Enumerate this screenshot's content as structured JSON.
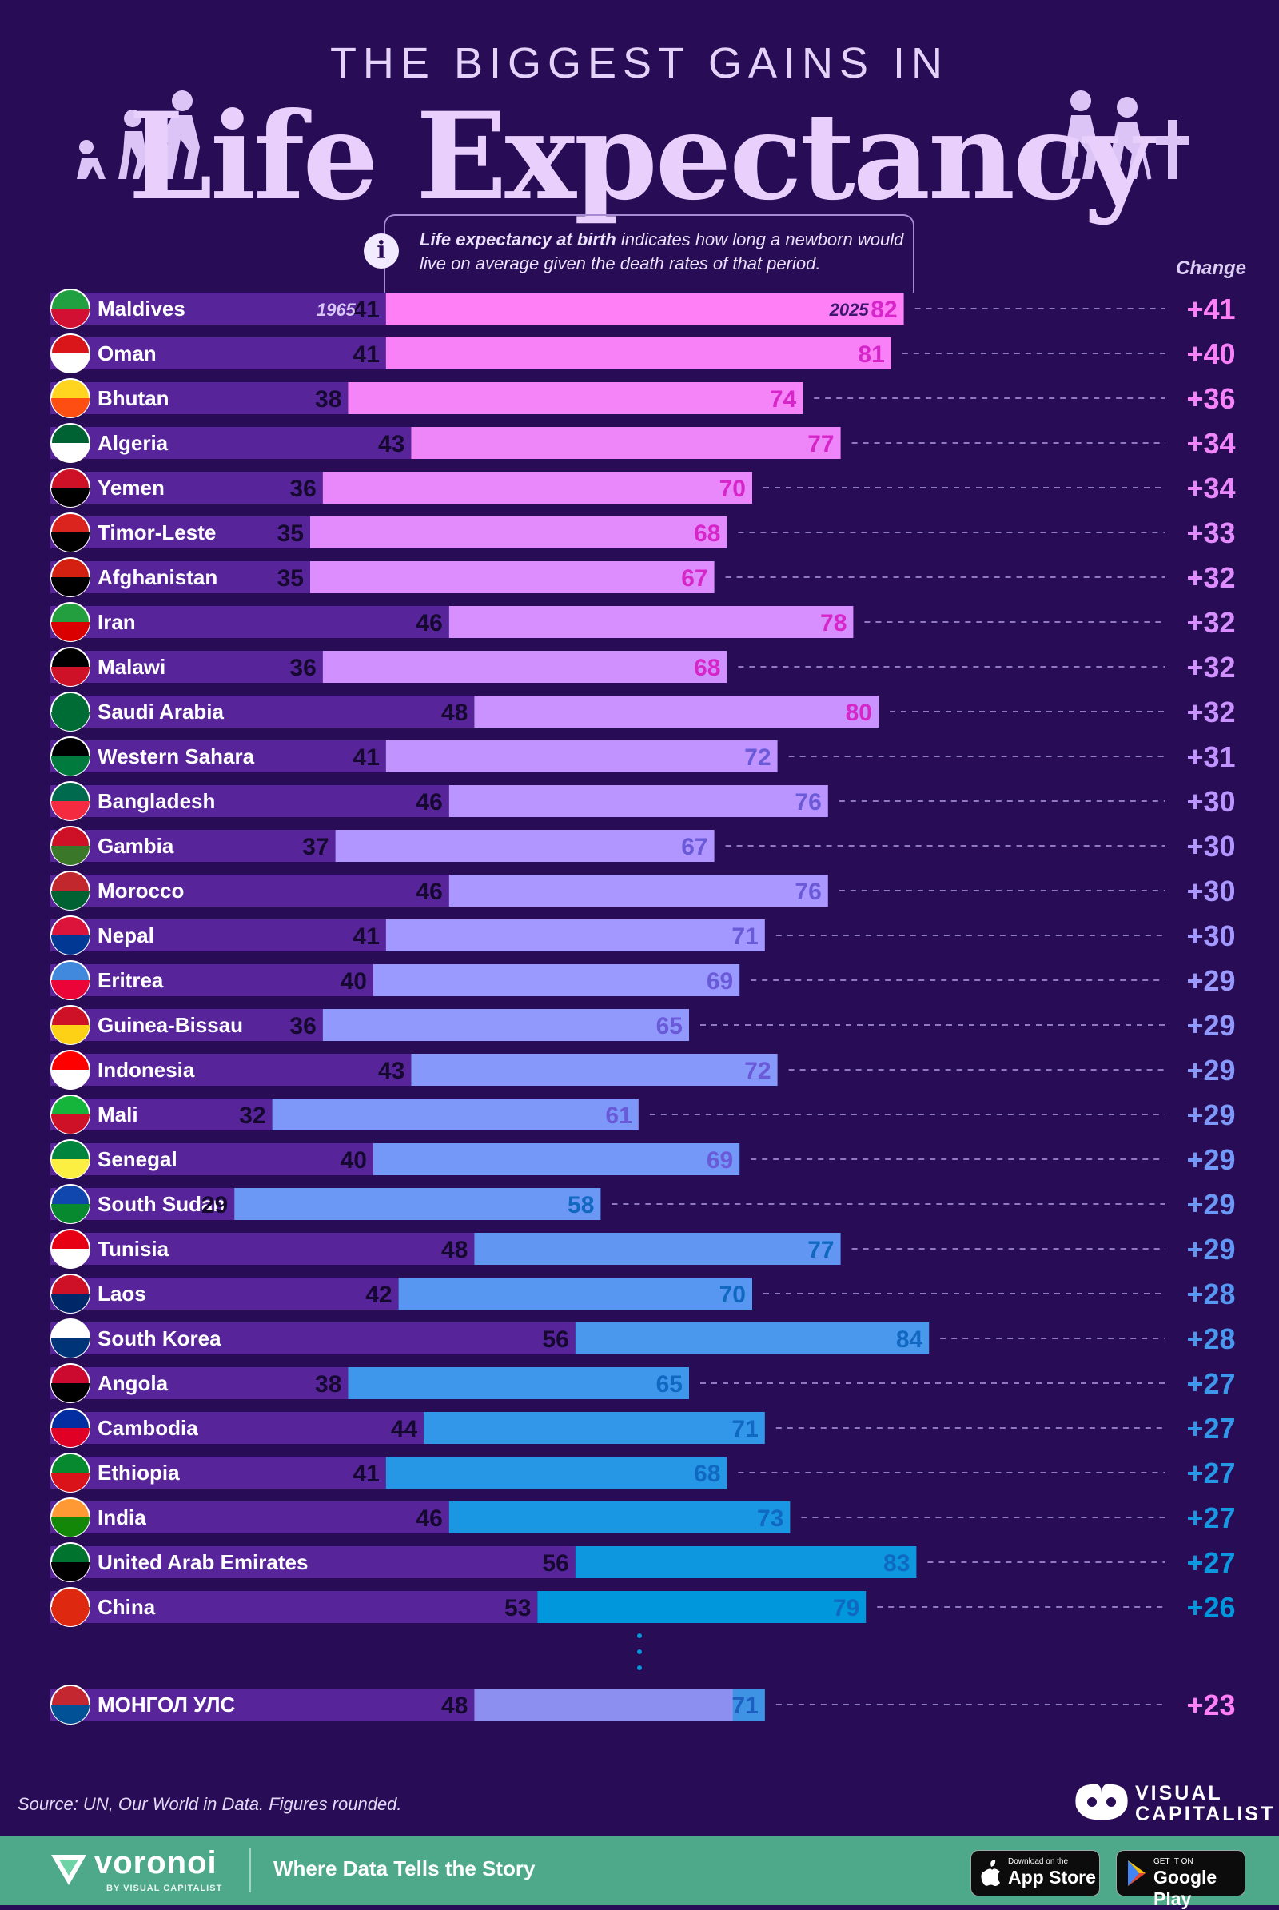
{
  "header": {
    "title_top": "THE BIGGEST GAINS IN",
    "title_main": "Life Expectancy",
    "info_bold": "Life expectancy at birth",
    "info_rest": "indicates how long a newborn would live on average given the death rates of that period.",
    "change_label": "Change"
  },
  "colors": {
    "background": "#280c55",
    "bar_1965": "#57249a",
    "bar_2025_top": "#ff7ff6",
    "bar_2025_bottom": "#0097dc",
    "footer": "#4ea98a"
  },
  "chart_data": {
    "type": "bar",
    "title": "The Biggest Gains in Life Expectancy",
    "series": [
      {
        "name": "1965"
      },
      {
        "name": "2025"
      }
    ],
    "xlim": [
      0,
      90
    ],
    "countries": [
      {
        "name": "Maldives",
        "v1965": 41,
        "v2025": 82,
        "change": "+41"
      },
      {
        "name": "Oman",
        "v1965": 41,
        "v2025": 81,
        "change": "+40"
      },
      {
        "name": "Bhutan",
        "v1965": 38,
        "v2025": 74,
        "change": "+36"
      },
      {
        "name": "Algeria",
        "v1965": 43,
        "v2025": 77,
        "change": "+34"
      },
      {
        "name": "Yemen",
        "v1965": 36,
        "v2025": 70,
        "change": "+34"
      },
      {
        "name": "Timor-Leste",
        "v1965": 35,
        "v2025": 68,
        "change": "+33"
      },
      {
        "name": "Afghanistan",
        "v1965": 35,
        "v2025": 67,
        "change": "+32"
      },
      {
        "name": "Iran",
        "v1965": 46,
        "v2025": 78,
        "change": "+32"
      },
      {
        "name": "Malawi",
        "v1965": 36,
        "v2025": 68,
        "change": "+32"
      },
      {
        "name": "Saudi Arabia",
        "v1965": 48,
        "v2025": 80,
        "change": "+32"
      },
      {
        "name": "Western Sahara",
        "v1965": 41,
        "v2025": 72,
        "change": "+31"
      },
      {
        "name": "Bangladesh",
        "v1965": 46,
        "v2025": 76,
        "change": "+30"
      },
      {
        "name": "Gambia",
        "v1965": 37,
        "v2025": 67,
        "change": "+30"
      },
      {
        "name": "Morocco",
        "v1965": 46,
        "v2025": 76,
        "change": "+30"
      },
      {
        "name": "Nepal",
        "v1965": 41,
        "v2025": 71,
        "change": "+30"
      },
      {
        "name": "Eritrea",
        "v1965": 40,
        "v2025": 69,
        "change": "+29"
      },
      {
        "name": "Guinea-Bissau",
        "v1965": 36,
        "v2025": 65,
        "change": "+29"
      },
      {
        "name": "Indonesia",
        "v1965": 43,
        "v2025": 72,
        "change": "+29"
      },
      {
        "name": "Mali",
        "v1965": 32,
        "v2025": 61,
        "change": "+29"
      },
      {
        "name": "Senegal",
        "v1965": 40,
        "v2025": 69,
        "change": "+29"
      },
      {
        "name": "South Sudan",
        "v1965": 29,
        "v2025": 58,
        "change": "+29"
      },
      {
        "name": "Tunisia",
        "v1965": 48,
        "v2025": 77,
        "change": "+29"
      },
      {
        "name": "Laos",
        "v1965": 42,
        "v2025": 70,
        "change": "+28"
      },
      {
        "name": "South Korea",
        "v1965": 56,
        "v2025": 84,
        "change": "+28"
      },
      {
        "name": "Angola",
        "v1965": 38,
        "v2025": 65,
        "change": "+27"
      },
      {
        "name": "Cambodia",
        "v1965": 44,
        "v2025": 71,
        "change": "+27"
      },
      {
        "name": "Ethiopia",
        "v1965": 41,
        "v2025": 68,
        "change": "+27"
      },
      {
        "name": "India",
        "v1965": 46,
        "v2025": 73,
        "change": "+27"
      },
      {
        "name": "United Arab Emirates",
        "v1965": 56,
        "v2025": 83,
        "change": "+27"
      },
      {
        "name": "China",
        "v1965": 53,
        "v2025": 79,
        "change": "+26"
      },
      {
        "name": "МОНГОЛ УЛС",
        "v1965": 48,
        "v2025": 71,
        "change": "+23",
        "highlight": true
      }
    ]
  },
  "footer": {
    "source": "Source: UN, Our World in Data. Figures rounded.",
    "vc_line1": "VISUAL",
    "vc_line2": "CAPITALIST",
    "brand": "voronoi",
    "brand_sub": "BY VISUAL CAPITALIST",
    "tagline": "Where Data Tells the Story",
    "appstore_small": "Download on the",
    "appstore_big": "App Store",
    "gplay_small": "GET IT ON",
    "gplay_big": "Google Play"
  }
}
